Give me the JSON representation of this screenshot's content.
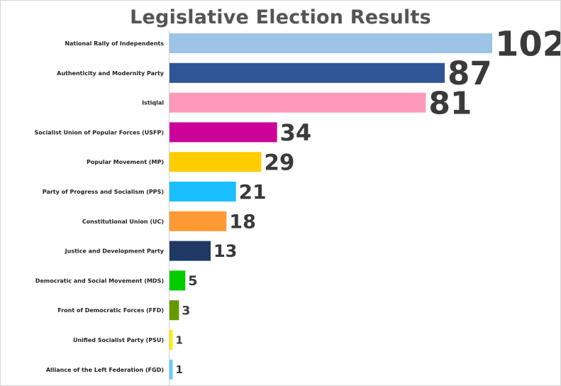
{
  "chart_data": {
    "type": "bar",
    "orientation": "horizontal",
    "title": "Legislative Election Results",
    "xlabel": "",
    "ylabel": "",
    "grid": false,
    "categories": [
      "National Rally of Independents",
      "Authenticity and Modernity Party",
      "Istiqlal",
      "Socialist Union of Popular Forces (USFP)",
      "Popular Movement (MP)",
      "Party of Progress and Socialism (PPS)",
      "Constitutional Union (UC)",
      "Justice and Development Party",
      "Democratic and Social Movement (MDS)",
      "Front of Democratic Forces (FFD)",
      "Unified Socialist Party (PSU)",
      "Alliance of the Left Federation (FGD)"
    ],
    "values": [
      102,
      87,
      81,
      34,
      29,
      21,
      18,
      13,
      5,
      3,
      1,
      1
    ],
    "colors": [
      "#9dc3e6",
      "#2f5597",
      "#ff99bb",
      "#cc0099",
      "#ffcc00",
      "#1abfff",
      "#ff9933",
      "#1f3864",
      "#00cc00",
      "#669900",
      "#ffee00",
      "#66ccff"
    ]
  }
}
